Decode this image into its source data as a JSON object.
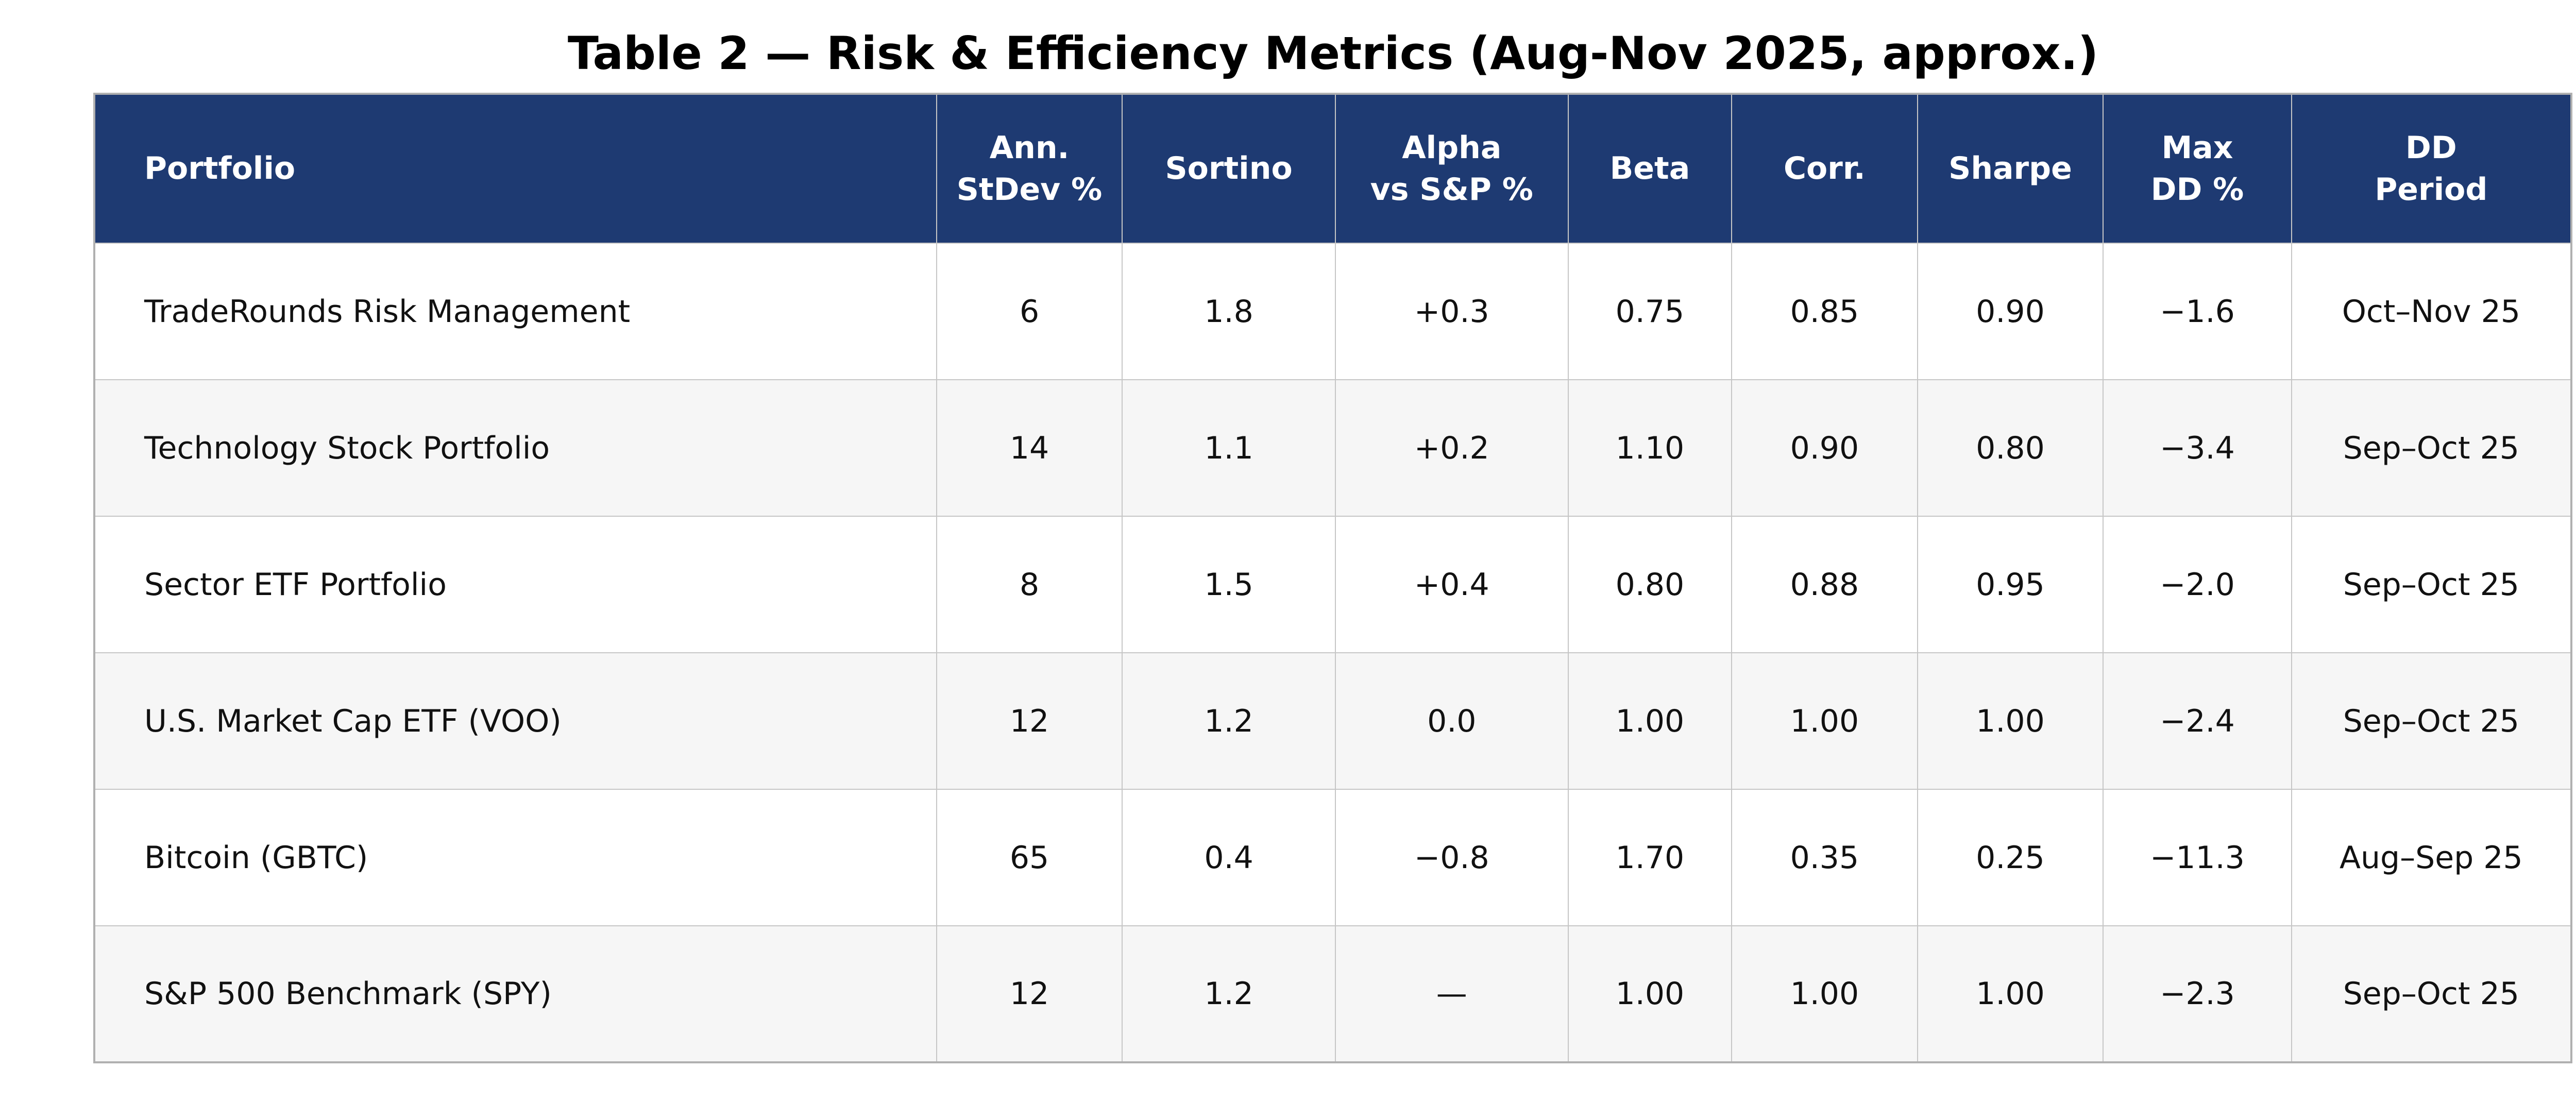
{
  "page": {
    "title": "Table 2 — Risk & Efficiency Metrics (Aug-Nov 2025, approx.)"
  },
  "colors": {
    "header_bg": "#1e3a72",
    "header_text": "#ffffff",
    "row_bg": "#ffffff",
    "row_alt_bg": "#f6f6f6",
    "grid_border": "#c6c6c6",
    "outer_border": "#b0b0b0",
    "body_text": "#111111"
  },
  "chart_data": {
    "type": "table",
    "title": "Table 2 — Risk & Efficiency Metrics (Aug-Nov 2025, approx.)",
    "columns": [
      {
        "key": "portfolio",
        "label": "Portfolio",
        "align": "left",
        "width_pct": 34.0
      },
      {
        "key": "ann_stdev",
        "label": "Ann.\nStDev %",
        "align": "center",
        "width_pct": 7.5
      },
      {
        "key": "sortino",
        "label": "Sortino",
        "align": "center",
        "width_pct": 8.6
      },
      {
        "key": "alpha",
        "label": "Alpha\nvs S&P %",
        "align": "center",
        "width_pct": 9.4
      },
      {
        "key": "beta",
        "label": "Beta",
        "align": "center",
        "width_pct": 6.6
      },
      {
        "key": "corr",
        "label": "Corr.",
        "align": "center",
        "width_pct": 7.5
      },
      {
        "key": "sharpe",
        "label": "Sharpe",
        "align": "center",
        "width_pct": 7.5
      },
      {
        "key": "max_dd",
        "label": "Max\nDD %",
        "align": "center",
        "width_pct": 7.6
      },
      {
        "key": "dd_period",
        "label": "DD\nPeriod",
        "align": "center",
        "width_pct": 11.3
      }
    ],
    "rows": [
      {
        "portfolio": "TradeRounds Risk Management",
        "ann_stdev": "6",
        "sortino": "1.8",
        "alpha": "+0.3",
        "beta": "0.75",
        "corr": "0.85",
        "sharpe": "0.90",
        "max_dd": "−1.6",
        "dd_period": "Oct–Nov 25"
      },
      {
        "portfolio": "Technology Stock Portfolio",
        "ann_stdev": "14",
        "sortino": "1.1",
        "alpha": "+0.2",
        "beta": "1.10",
        "corr": "0.90",
        "sharpe": "0.80",
        "max_dd": "−3.4",
        "dd_period": "Sep–Oct 25"
      },
      {
        "portfolio": "Sector ETF Portfolio",
        "ann_stdev": "8",
        "sortino": "1.5",
        "alpha": "+0.4",
        "beta": "0.80",
        "corr": "0.88",
        "sharpe": "0.95",
        "max_dd": "−2.0",
        "dd_period": "Sep–Oct 25"
      },
      {
        "portfolio": "U.S. Market Cap ETF (VOO)",
        "ann_stdev": "12",
        "sortino": "1.2",
        "alpha": "0.0",
        "beta": "1.00",
        "corr": "1.00",
        "sharpe": "1.00",
        "max_dd": "−2.4",
        "dd_period": "Sep–Oct 25"
      },
      {
        "portfolio": "Bitcoin (GBTC)",
        "ann_stdev": "65",
        "sortino": "0.4",
        "alpha": "−0.8",
        "beta": "1.70",
        "corr": "0.35",
        "sharpe": "0.25",
        "max_dd": "−11.3",
        "dd_period": "Aug–Sep 25"
      },
      {
        "portfolio": "S&P 500 Benchmark (SPY)",
        "ann_stdev": "12",
        "sortino": "1.2",
        "alpha": "—",
        "beta": "1.00",
        "corr": "1.00",
        "sharpe": "1.00",
        "max_dd": "−2.3",
        "dd_period": "Sep–Oct 25"
      }
    ]
  }
}
